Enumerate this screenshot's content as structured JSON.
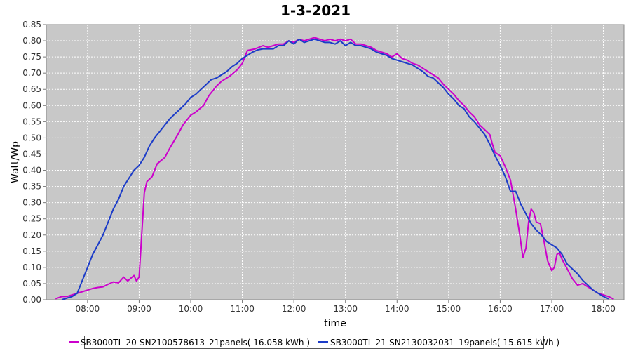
{
  "chart_data": {
    "type": "line",
    "title": "1-3-2021",
    "xlabel": "time",
    "ylabel": "Watt/Wp",
    "xlim": [
      7.2,
      18.4
    ],
    "ylim": [
      0,
      0.85
    ],
    "yticks": [
      "0.00",
      "0.05",
      "0.10",
      "0.15",
      "0.20",
      "0.25",
      "0.30",
      "0.35",
      "0.40",
      "0.45",
      "0.50",
      "0.55",
      "0.60",
      "0.65",
      "0.70",
      "0.75",
      "0.80",
      "0.85"
    ],
    "xticks": [
      {
        "value": 8,
        "label": "08:00"
      },
      {
        "value": 9,
        "label": "09:00"
      },
      {
        "value": 10,
        "label": "10:00"
      },
      {
        "value": 11,
        "label": "11:00"
      },
      {
        "value": 12,
        "label": "12:00"
      },
      {
        "value": 13,
        "label": "13:00"
      },
      {
        "value": 14,
        "label": "14:00"
      },
      {
        "value": 15,
        "label": "15:00"
      },
      {
        "value": 16,
        "label": "16:00"
      },
      {
        "value": 17,
        "label": "17:00"
      },
      {
        "value": 18,
        "label": "18:00"
      }
    ],
    "grid": true,
    "background": "#c8c8c8",
    "legend_position": "bottom",
    "series": [
      {
        "name": "SB3000TL-20-SN2100578613_21panels( 16.058 kWh )",
        "color": "#cc00cc",
        "points": [
          [
            7.38,
            0.003
          ],
          [
            7.5,
            0.01
          ],
          [
            7.6,
            0.01
          ],
          [
            7.7,
            0.015
          ],
          [
            7.8,
            0.02
          ],
          [
            7.9,
            0.025
          ],
          [
            8.0,
            0.03
          ],
          [
            8.1,
            0.035
          ],
          [
            8.2,
            0.038
          ],
          [
            8.3,
            0.04
          ],
          [
            8.4,
            0.048
          ],
          [
            8.5,
            0.055
          ],
          [
            8.6,
            0.052
          ],
          [
            8.7,
            0.07
          ],
          [
            8.78,
            0.058
          ],
          [
            8.85,
            0.068
          ],
          [
            8.9,
            0.075
          ],
          [
            8.95,
            0.058
          ],
          [
            9.0,
            0.07
          ],
          [
            9.05,
            0.2
          ],
          [
            9.1,
            0.33
          ],
          [
            9.15,
            0.365
          ],
          [
            9.25,
            0.38
          ],
          [
            9.35,
            0.42
          ],
          [
            9.5,
            0.44
          ],
          [
            9.6,
            0.47
          ],
          [
            9.75,
            0.51
          ],
          [
            9.85,
            0.54
          ],
          [
            10.0,
            0.57
          ],
          [
            10.1,
            0.58
          ],
          [
            10.25,
            0.6
          ],
          [
            10.35,
            0.63
          ],
          [
            10.5,
            0.66
          ],
          [
            10.6,
            0.675
          ],
          [
            10.75,
            0.69
          ],
          [
            10.9,
            0.71
          ],
          [
            11.0,
            0.73
          ],
          [
            11.1,
            0.77
          ],
          [
            11.25,
            0.775
          ],
          [
            11.4,
            0.785
          ],
          [
            11.5,
            0.78
          ],
          [
            11.6,
            0.785
          ],
          [
            11.7,
            0.79
          ],
          [
            11.8,
            0.79
          ],
          [
            11.9,
            0.8
          ],
          [
            12.0,
            0.795
          ],
          [
            12.1,
            0.805
          ],
          [
            12.2,
            0.8
          ],
          [
            12.3,
            0.805
          ],
          [
            12.4,
            0.81
          ],
          [
            12.5,
            0.805
          ],
          [
            12.6,
            0.8
          ],
          [
            12.7,
            0.805
          ],
          [
            12.8,
            0.8
          ],
          [
            12.9,
            0.805
          ],
          [
            13.0,
            0.8
          ],
          [
            13.1,
            0.805
          ],
          [
            13.2,
            0.79
          ],
          [
            13.3,
            0.79
          ],
          [
            13.4,
            0.785
          ],
          [
            13.5,
            0.78
          ],
          [
            13.6,
            0.77
          ],
          [
            13.7,
            0.765
          ],
          [
            13.8,
            0.76
          ],
          [
            13.9,
            0.75
          ],
          [
            14.0,
            0.76
          ],
          [
            14.1,
            0.745
          ],
          [
            14.2,
            0.74
          ],
          [
            14.3,
            0.73
          ],
          [
            14.4,
            0.725
          ],
          [
            14.5,
            0.715
          ],
          [
            14.6,
            0.705
          ],
          [
            14.7,
            0.695
          ],
          [
            14.8,
            0.685
          ],
          [
            14.9,
            0.665
          ],
          [
            15.0,
            0.65
          ],
          [
            15.1,
            0.635
          ],
          [
            15.2,
            0.615
          ],
          [
            15.3,
            0.6
          ],
          [
            15.4,
            0.58
          ],
          [
            15.5,
            0.565
          ],
          [
            15.6,
            0.54
          ],
          [
            15.7,
            0.525
          ],
          [
            15.8,
            0.51
          ],
          [
            15.85,
            0.48
          ],
          [
            15.9,
            0.455
          ],
          [
            16.0,
            0.445
          ],
          [
            16.1,
            0.41
          ],
          [
            16.2,
            0.37
          ],
          [
            16.3,
            0.28
          ],
          [
            16.38,
            0.2
          ],
          [
            16.44,
            0.13
          ],
          [
            16.5,
            0.16
          ],
          [
            16.55,
            0.24
          ],
          [
            16.6,
            0.28
          ],
          [
            16.65,
            0.27
          ],
          [
            16.7,
            0.24
          ],
          [
            16.78,
            0.235
          ],
          [
            16.85,
            0.18
          ],
          [
            16.92,
            0.12
          ],
          [
            17.0,
            0.09
          ],
          [
            17.05,
            0.1
          ],
          [
            17.1,
            0.14
          ],
          [
            17.15,
            0.145
          ],
          [
            17.2,
            0.125
          ],
          [
            17.3,
            0.095
          ],
          [
            17.4,
            0.065
          ],
          [
            17.5,
            0.045
          ],
          [
            17.6,
            0.05
          ],
          [
            17.7,
            0.04
          ],
          [
            17.8,
            0.03
          ],
          [
            17.9,
            0.02
          ],
          [
            18.0,
            0.015
          ],
          [
            18.1,
            0.01
          ],
          [
            18.2,
            0.002
          ]
        ]
      },
      {
        "name": "SB3000TL-21-SN2130032031_19panels( 15.615 kWh )",
        "color": "#1c3cc8",
        "points": [
          [
            7.5,
            0.0
          ],
          [
            7.6,
            0.005
          ],
          [
            7.7,
            0.01
          ],
          [
            7.8,
            0.02
          ],
          [
            7.9,
            0.06
          ],
          [
            8.0,
            0.1
          ],
          [
            8.1,
            0.14
          ],
          [
            8.2,
            0.17
          ],
          [
            8.3,
            0.2
          ],
          [
            8.4,
            0.24
          ],
          [
            8.5,
            0.28
          ],
          [
            8.6,
            0.31
          ],
          [
            8.7,
            0.35
          ],
          [
            8.8,
            0.375
          ],
          [
            8.9,
            0.4
          ],
          [
            9.0,
            0.415
          ],
          [
            9.1,
            0.44
          ],
          [
            9.2,
            0.475
          ],
          [
            9.3,
            0.5
          ],
          [
            9.4,
            0.52
          ],
          [
            9.5,
            0.54
          ],
          [
            9.6,
            0.56
          ],
          [
            9.7,
            0.575
          ],
          [
            9.8,
            0.59
          ],
          [
            9.9,
            0.605
          ],
          [
            10.0,
            0.625
          ],
          [
            10.1,
            0.635
          ],
          [
            10.2,
            0.65
          ],
          [
            10.3,
            0.665
          ],
          [
            10.4,
            0.68
          ],
          [
            10.5,
            0.685
          ],
          [
            10.6,
            0.695
          ],
          [
            10.7,
            0.705
          ],
          [
            10.8,
            0.72
          ],
          [
            10.9,
            0.73
          ],
          [
            11.0,
            0.745
          ],
          [
            11.1,
            0.755
          ],
          [
            11.2,
            0.765
          ],
          [
            11.3,
            0.772
          ],
          [
            11.4,
            0.775
          ],
          [
            11.5,
            0.775
          ],
          [
            11.6,
            0.775
          ],
          [
            11.7,
            0.785
          ],
          [
            11.8,
            0.785
          ],
          [
            11.9,
            0.8
          ],
          [
            12.0,
            0.79
          ],
          [
            12.1,
            0.805
          ],
          [
            12.2,
            0.795
          ],
          [
            12.3,
            0.8
          ],
          [
            12.4,
            0.805
          ],
          [
            12.5,
            0.8
          ],
          [
            12.6,
            0.795
          ],
          [
            12.7,
            0.795
          ],
          [
            12.8,
            0.79
          ],
          [
            12.9,
            0.8
          ],
          [
            13.0,
            0.785
          ],
          [
            13.1,
            0.795
          ],
          [
            13.2,
            0.785
          ],
          [
            13.3,
            0.785
          ],
          [
            13.4,
            0.78
          ],
          [
            13.5,
            0.775
          ],
          [
            13.6,
            0.765
          ],
          [
            13.7,
            0.76
          ],
          [
            13.8,
            0.755
          ],
          [
            13.9,
            0.745
          ],
          [
            14.0,
            0.74
          ],
          [
            14.1,
            0.735
          ],
          [
            14.2,
            0.73
          ],
          [
            14.3,
            0.725
          ],
          [
            14.4,
            0.715
          ],
          [
            14.5,
            0.705
          ],
          [
            14.6,
            0.69
          ],
          [
            14.7,
            0.685
          ],
          [
            14.8,
            0.67
          ],
          [
            14.9,
            0.655
          ],
          [
            15.0,
            0.635
          ],
          [
            15.1,
            0.62
          ],
          [
            15.2,
            0.6
          ],
          [
            15.3,
            0.59
          ],
          [
            15.4,
            0.565
          ],
          [
            15.5,
            0.55
          ],
          [
            15.6,
            0.53
          ],
          [
            15.7,
            0.51
          ],
          [
            15.8,
            0.48
          ],
          [
            15.9,
            0.445
          ],
          [
            16.0,
            0.415
          ],
          [
            16.1,
            0.38
          ],
          [
            16.2,
            0.335
          ],
          [
            16.3,
            0.335
          ],
          [
            16.4,
            0.295
          ],
          [
            16.5,
            0.265
          ],
          [
            16.6,
            0.235
          ],
          [
            16.7,
            0.215
          ],
          [
            16.8,
            0.2
          ],
          [
            16.9,
            0.18
          ],
          [
            17.0,
            0.17
          ],
          [
            17.1,
            0.16
          ],
          [
            17.2,
            0.14
          ],
          [
            17.3,
            0.11
          ],
          [
            17.4,
            0.095
          ],
          [
            17.5,
            0.08
          ],
          [
            17.6,
            0.06
          ],
          [
            17.7,
            0.045
          ],
          [
            17.8,
            0.03
          ],
          [
            17.9,
            0.02
          ],
          [
            18.0,
            0.01
          ],
          [
            18.1,
            0.003
          ]
        ]
      }
    ]
  }
}
